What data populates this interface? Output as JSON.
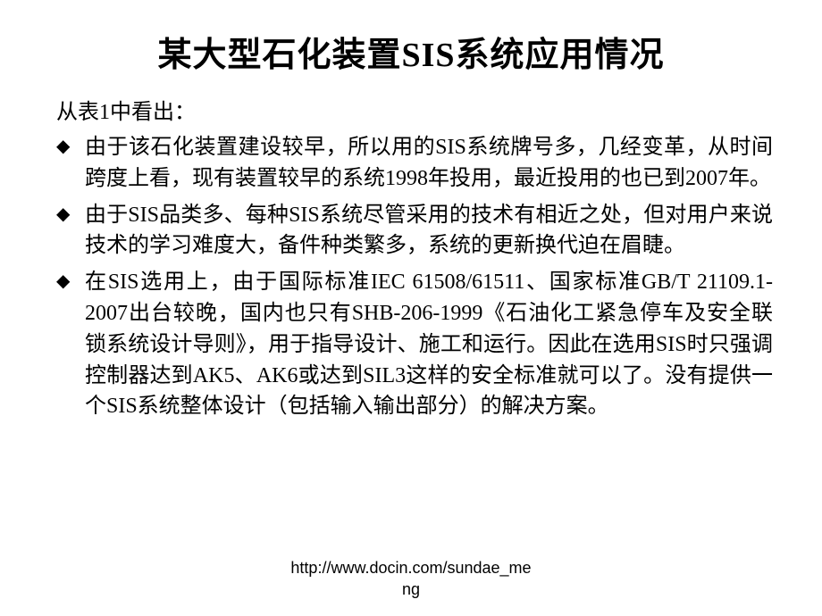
{
  "slide": {
    "title": "某大型石化装置SIS系统应用情况",
    "intro": "从表1中看出：",
    "bullets": [
      "由于该石化装置建设较早，所以用的SIS系统牌号多，几经变革，从时间跨度上看，现有装置较早的系统1998年投用，最近投用的也已到2007年。",
      "由于SIS品类多、每种SIS系统尽管采用的技术有相近之处，但对用户来说技术的学习难度大，备件种类繁多，系统的更新换代迫在眉睫。",
      "在SIS选用上，由于国际标准IEC 61508/61511、国家标准GB/T 21109.1-2007出台较晚，国内也只有SHB-206-1999《石油化工紧急停车及安全联锁系统设计导则》，用于指导设计、施工和运行。因此在选用SIS时只强调控制器达到AK5、AK6或达到SIL3这样的安全标准就可以了。没有提供一个SIS系统整体设计（包括输入输出部分）的解决方案。"
    ],
    "bullet_marker": "◆",
    "footer_line1": "http://www.docin.com/sundae_me",
    "footer_line2": "ng"
  },
  "style": {
    "background_color": "#ffffff",
    "text_color": "#000000",
    "title_fontsize": 38,
    "body_fontsize": 24,
    "footer_fontsize": 18,
    "font_family": "SimSun"
  }
}
